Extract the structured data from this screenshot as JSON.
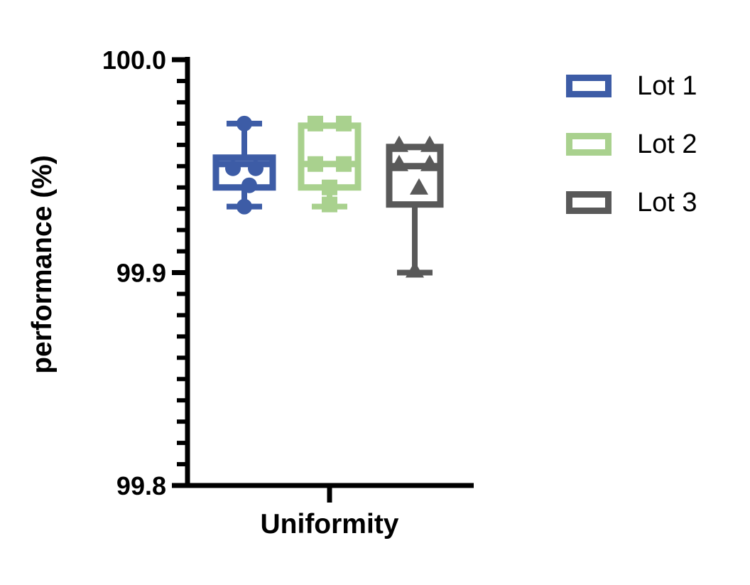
{
  "chart_data": {
    "type": "box",
    "title": "",
    "xlabel": "Uniformity",
    "ylabel": "performance (%)",
    "ylim": [
      99.8,
      100.0
    ],
    "y_major_ticks": [
      {
        "value": 100.0,
        "label": "100.0"
      },
      {
        "value": 99.9,
        "label": "99.9"
      },
      {
        "value": 99.8,
        "label": "99.8"
      }
    ],
    "y_minor_step": 0.01,
    "grid": "off",
    "legend_position": "right",
    "categories": [
      "Uniformity"
    ],
    "series": [
      {
        "name": "Lot 1",
        "color": "#3D5CA6",
        "marker": "circle",
        "box": {
          "min": 99.931,
          "q1": 99.94,
          "median": 99.951,
          "q3": 99.954,
          "max": 99.97
        },
        "points": [
          {
            "value": 99.97,
            "dx": 0
          },
          {
            "value": 99.949,
            "dx": -16
          },
          {
            "value": 99.949,
            "dx": 16
          },
          {
            "value": 99.941,
            "dx": 7
          },
          {
            "value": 99.931,
            "dx": 0
          }
        ]
      },
      {
        "name": "Lot 2",
        "color": "#A9D18E",
        "marker": "square",
        "box": {
          "min": 99.931,
          "q1": 99.94,
          "median": 99.951,
          "q3": 99.969,
          "max": 99.969
        },
        "points": [
          {
            "value": 99.97,
            "dx": -20
          },
          {
            "value": 99.97,
            "dx": 20
          },
          {
            "value": 99.951,
            "dx": -20
          },
          {
            "value": 99.951,
            "dx": 20
          },
          {
            "value": 99.94,
            "dx": 0
          },
          {
            "value": 99.932,
            "dx": 0
          }
        ]
      },
      {
        "name": "Lot 3",
        "color": "#595959",
        "marker": "triangle",
        "box": {
          "min": 99.9,
          "q1": 99.932,
          "median": 99.95,
          "q3": 99.959,
          "max": 99.959
        },
        "points": [
          {
            "value": 99.96,
            "dx": -22
          },
          {
            "value": 99.96,
            "dx": 21
          },
          {
            "value": 99.951,
            "dx": -22
          },
          {
            "value": 99.951,
            "dx": 21
          },
          {
            "value": 99.94,
            "dx": 6
          },
          {
            "value": 99.901,
            "dx": 0
          }
        ]
      }
    ]
  }
}
